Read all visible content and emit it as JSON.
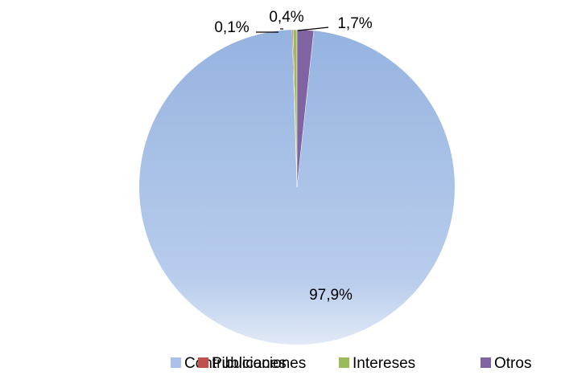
{
  "chart_data": {
    "type": "pie",
    "categories": [
      "Contribuciones",
      "Publicaciones",
      "Intereses",
      "Otros"
    ],
    "values": [
      97.9,
      0.1,
      0.4,
      1.7
    ],
    "value_labels": [
      "97,9%",
      "0,1%",
      "0,4%",
      "1,7%"
    ],
    "colors": [
      "#9ab5e2",
      "#c0504d",
      "#9bbb59",
      "#8064a2"
    ],
    "legend": "bottom"
  }
}
